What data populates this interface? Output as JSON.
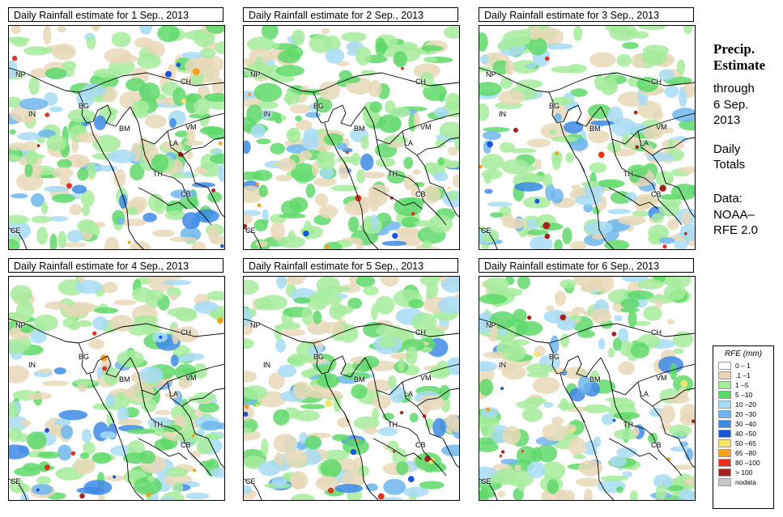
{
  "panels": [
    {
      "title": "Daily Rainfall estimate for  1 Sep., 2013",
      "seed": 11
    },
    {
      "title": "Daily Rainfall estimate for  2 Sep., 2013",
      "seed": 23
    },
    {
      "title": "Daily Rainfall estimate for  3 Sep., 2013",
      "seed": 37
    },
    {
      "title": "Daily Rainfall estimate for  4 Sep., 2013",
      "seed": 41
    },
    {
      "title": "Daily Rainfall estimate for  5 Sep., 2013",
      "seed": 53
    },
    {
      "title": "Daily Rainfall estimate for  6 Sep., 2013",
      "seed": 67
    }
  ],
  "country_labels": [
    "NP",
    "IN",
    "BG",
    "CH",
    "BM",
    "VM",
    "LA",
    "TH",
    "CB",
    "CE"
  ],
  "sidebar": {
    "title_line1": "Precip.",
    "title_line2": "Estimate",
    "through": "through",
    "date_line1": "6 Sep.",
    "date_line2": "2013",
    "daily_line1": "Daily",
    "daily_line2": "Totals",
    "data_line1": "Data:",
    "data_line2": "NOAA–",
    "data_line3": "RFE 2.0"
  },
  "legend": {
    "title": "RFE (mm)",
    "items": [
      {
        "label": "0 – 1",
        "color": "#ffffff"
      },
      {
        "label": ".1 –1",
        "color": "#e8d8b8"
      },
      {
        "label": "1 –5",
        "color": "#a6ec9c"
      },
      {
        "label": "5 –10",
        "color": "#5fd96a"
      },
      {
        "label": "10 –20",
        "color": "#a8dcf4"
      },
      {
        "label": "20 –30",
        "color": "#6fb6ef"
      },
      {
        "label": "30 –40",
        "color": "#3d8ae6"
      },
      {
        "label": "40 –50",
        "color": "#1a54d8"
      },
      {
        "label": "50 –65",
        "color": "#f3e46a"
      },
      {
        "label": "65 –80",
        "color": "#f7a21a"
      },
      {
        "label": "80 –100",
        "color": "#e8301c"
      },
      {
        "label": "> 100",
        "color": "#a5221c"
      },
      {
        "label": "nodata",
        "color": "#c8c8c8"
      }
    ]
  }
}
